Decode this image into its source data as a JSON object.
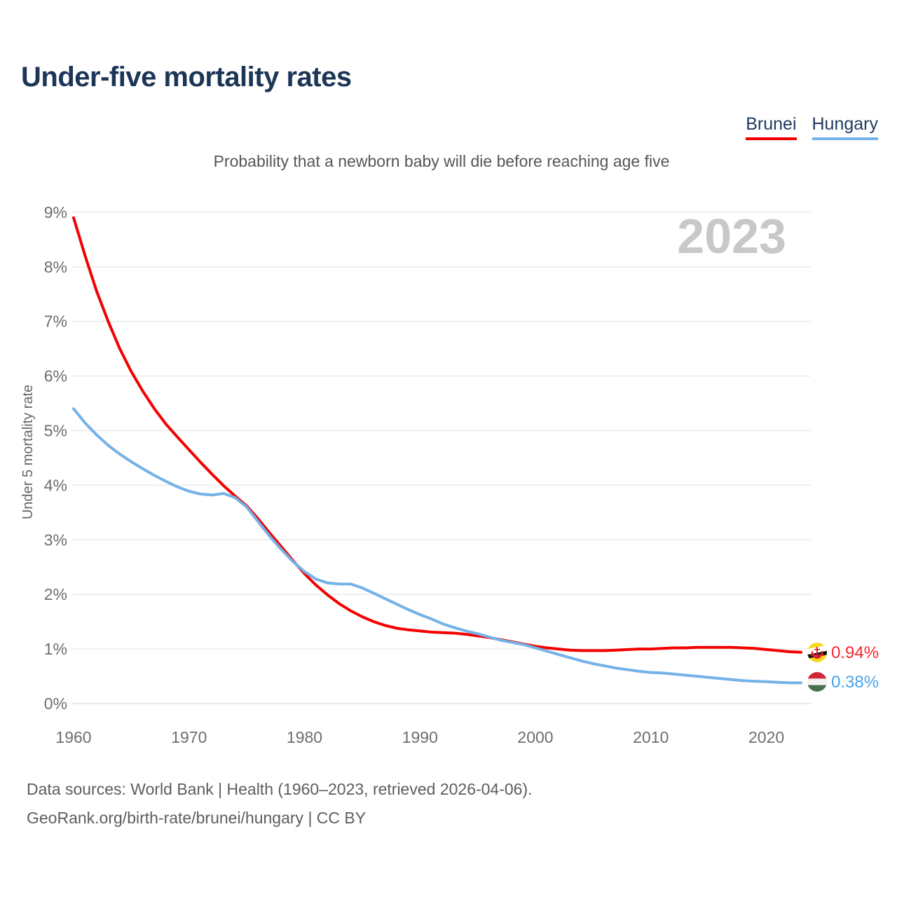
{
  "title": "Under-five mortality rates",
  "subtitle": "Probability that a newborn baby will die before reaching age five",
  "year_watermark": "2023",
  "y_axis_title": "Under 5 mortality rate",
  "legend": {
    "brunei_label": "Brunei",
    "hungary_label": "Hungary"
  },
  "footer": {
    "line1": "Data sources: World Bank | Health (1960–2023, retrieved 2026-04-06).",
    "line2": "GeoRank.org/birth-rate/brunei/hungary | CC BY"
  },
  "colors": {
    "brunei_line": "#f40000",
    "brunei_label": "#f7262e",
    "hungary_line": "#74b2e8",
    "hungary_label": "#4aa3ea",
    "gridline": "#e8e8e8",
    "zero_gridline": "#dcdcdc",
    "title_navy": "#1d3557"
  },
  "chart_data": {
    "type": "line",
    "title": "Under-five mortality rates",
    "subtitle": "Probability that a newborn baby will die before reaching age five",
    "ylabel": "Under 5 mortality rate",
    "xlabel": "",
    "xlim": [
      1960,
      2023
    ],
    "ylim": [
      0,
      9
    ],
    "grid": true,
    "legend_position": "top-right",
    "unit": "%",
    "x": [
      1960,
      1961,
      1962,
      1963,
      1964,
      1965,
      1966,
      1967,
      1968,
      1969,
      1970,
      1971,
      1972,
      1973,
      1974,
      1975,
      1976,
      1977,
      1978,
      1979,
      1980,
      1981,
      1982,
      1983,
      1984,
      1985,
      1986,
      1987,
      1988,
      1989,
      1990,
      1991,
      1992,
      1993,
      1994,
      1995,
      1996,
      1997,
      1998,
      1999,
      2000,
      2001,
      2002,
      2003,
      2004,
      2005,
      2006,
      2007,
      2008,
      2009,
      2010,
      2011,
      2012,
      2013,
      2014,
      2015,
      2016,
      2017,
      2018,
      2019,
      2020,
      2021,
      2022,
      2023
    ],
    "xticks": [
      {
        "v": 1960,
        "label": "1960"
      },
      {
        "v": 1970,
        "label": "1970"
      },
      {
        "v": 1980,
        "label": "1980"
      },
      {
        "v": 1990,
        "label": "1990"
      },
      {
        "v": 2000,
        "label": "2000"
      },
      {
        "v": 2010,
        "label": "2010"
      },
      {
        "v": 2020,
        "label": "2020"
      }
    ],
    "yticks": [
      {
        "v": 0,
        "label": "0%"
      },
      {
        "v": 1,
        "label": "1%"
      },
      {
        "v": 2,
        "label": "2%"
      },
      {
        "v": 3,
        "label": "3%"
      },
      {
        "v": 4,
        "label": "4%"
      },
      {
        "v": 5,
        "label": "5%"
      },
      {
        "v": 6,
        "label": "6%"
      },
      {
        "v": 7,
        "label": "7%"
      },
      {
        "v": 8,
        "label": "8%"
      },
      {
        "v": 9,
        "label": "9%"
      }
    ],
    "series": [
      {
        "name": "Brunei",
        "color": "#f40000",
        "end_label": "0.94%",
        "values": [
          8.9,
          8.2,
          7.55,
          7.0,
          6.5,
          6.08,
          5.72,
          5.4,
          5.12,
          4.88,
          4.65,
          4.42,
          4.2,
          3.99,
          3.8,
          3.62,
          3.38,
          3.12,
          2.87,
          2.62,
          2.38,
          2.17,
          1.99,
          1.83,
          1.7,
          1.59,
          1.5,
          1.43,
          1.38,
          1.35,
          1.33,
          1.31,
          1.3,
          1.29,
          1.27,
          1.24,
          1.21,
          1.17,
          1.13,
          1.09,
          1.05,
          1.02,
          1.0,
          0.98,
          0.97,
          0.97,
          0.97,
          0.98,
          0.99,
          1.0,
          1.0,
          1.01,
          1.02,
          1.02,
          1.03,
          1.03,
          1.03,
          1.03,
          1.02,
          1.01,
          0.99,
          0.97,
          0.95,
          0.94
        ]
      },
      {
        "name": "Hungary",
        "color": "#74b2e8",
        "end_label": "0.38%",
        "values": [
          5.4,
          5.14,
          4.92,
          4.73,
          4.57,
          4.43,
          4.3,
          4.18,
          4.07,
          3.97,
          3.89,
          3.84,
          3.82,
          3.85,
          3.77,
          3.6,
          3.33,
          3.06,
          2.82,
          2.6,
          2.42,
          2.28,
          2.21,
          2.19,
          2.19,
          2.12,
          2.02,
          1.92,
          1.82,
          1.72,
          1.63,
          1.55,
          1.46,
          1.39,
          1.33,
          1.28,
          1.22,
          1.16,
          1.12,
          1.08,
          1.02,
          0.96,
          0.9,
          0.84,
          0.78,
          0.73,
          0.69,
          0.65,
          0.62,
          0.59,
          0.57,
          0.56,
          0.54,
          0.52,
          0.5,
          0.48,
          0.46,
          0.44,
          0.42,
          0.41,
          0.4,
          0.39,
          0.38,
          0.38
        ]
      }
    ]
  }
}
